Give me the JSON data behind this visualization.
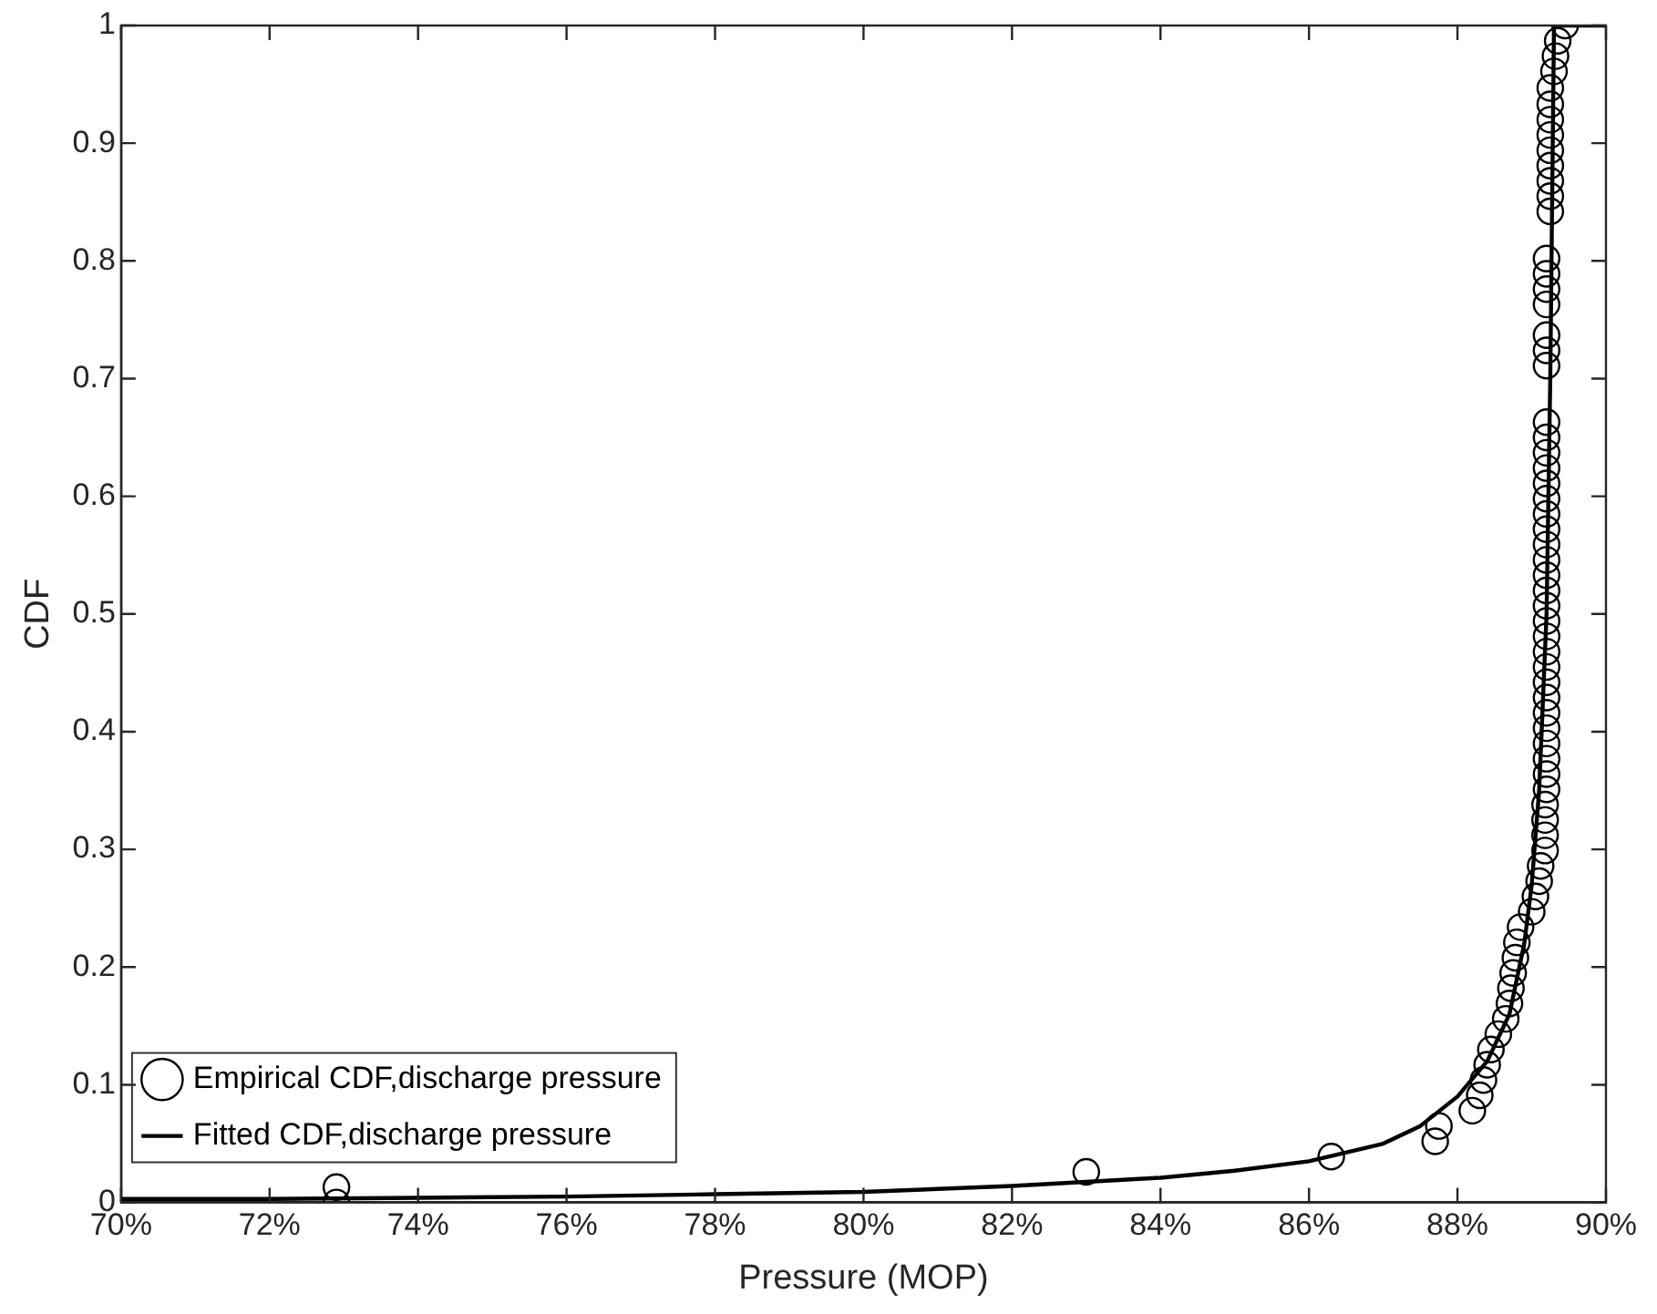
{
  "chart_data": {
    "type": "scatter",
    "xlabel": "Pressure (MOP)",
    "ylabel": "CDF",
    "xlim": [
      70,
      90
    ],
    "ylim": [
      0,
      1
    ],
    "xticks": [
      {
        "value": 70,
        "label": "70%"
      },
      {
        "value": 72,
        "label": "72%"
      },
      {
        "value": 74,
        "label": "74%"
      },
      {
        "value": 76,
        "label": "76%"
      },
      {
        "value": 78,
        "label": "78%"
      },
      {
        "value": 80,
        "label": "80%"
      },
      {
        "value": 82,
        "label": "82%"
      },
      {
        "value": 84,
        "label": "84%"
      },
      {
        "value": 86,
        "label": "86%"
      },
      {
        "value": 88,
        "label": "88%"
      },
      {
        "value": 90,
        "label": "90%"
      }
    ],
    "yticks": [
      0,
      0.1,
      0.2,
      0.3,
      0.4,
      0.5,
      0.6,
      0.7,
      0.8,
      0.9,
      1
    ],
    "grid": false,
    "legend": "bottom left",
    "series": [
      {
        "name": "Empirical CDF,discharge pressure",
        "marker": "circle",
        "color": "#000000",
        "x": [
          72.9,
          72.9,
          83.0,
          86.3,
          87.7,
          87.75,
          88.2,
          88.3,
          88.35,
          88.4,
          88.45,
          88.55,
          88.65,
          88.7,
          88.72,
          88.75,
          88.78,
          88.8,
          88.85,
          89.0,
          89.05,
          89.1,
          89.12,
          89.18,
          89.18,
          89.18,
          89.18,
          89.2,
          89.2,
          89.2,
          89.2,
          89.2,
          89.2,
          89.2,
          89.2,
          89.2,
          89.2,
          89.2,
          89.2,
          89.2,
          89.2,
          89.2,
          89.2,
          89.2,
          89.2,
          89.2,
          89.2,
          89.2,
          89.2,
          89.2,
          89.2,
          89.2,
          89.2,
          89.2,
          89.2,
          89.2,
          89.2,
          89.2,
          89.2,
          89.25,
          89.25,
          89.25,
          89.25,
          89.25,
          89.25,
          89.25,
          89.25,
          89.25,
          89.3,
          89.32,
          89.35,
          89.45
        ],
        "values": [
          0,
          0.013,
          0.026,
          0.039,
          0.052,
          0.065,
          0.078,
          0.091,
          0.104,
          0.117,
          0.13,
          0.143,
          0.156,
          0.169,
          0.182,
          0.195,
          0.208,
          0.221,
          0.234,
          0.247,
          0.26,
          0.273,
          0.286,
          0.299,
          0.312,
          0.325,
          0.338,
          0.351,
          0.364,
          0.377,
          0.39,
          0.403,
          0.416,
          0.429,
          0.442,
          0.455,
          0.468,
          0.481,
          0.494,
          0.507,
          0.52,
          0.533,
          0.546,
          0.559,
          0.572,
          0.585,
          0.598,
          0.611,
          0.624,
          0.637,
          0.65,
          0.663,
          0.711,
          0.724,
          0.737,
          0.763,
          0.776,
          0.789,
          0.802,
          0.842,
          0.855,
          0.868,
          0.881,
          0.894,
          0.907,
          0.92,
          0.933,
          0.947,
          0.961,
          0.974,
          0.987,
          1.0
        ]
      },
      {
        "name": "Fitted CDF,discharge pressure",
        "type": "line",
        "marker": "none",
        "line_style": "solid",
        "color": "#000000",
        "x": [
          70,
          72,
          74,
          76,
          78,
          80,
          82,
          84,
          85,
          86,
          87,
          87.5,
          88,
          88.4,
          88.7,
          88.9,
          89.0,
          89.1,
          89.2,
          89.25,
          89.3,
          90
        ],
        "values": [
          0.003,
          0.003,
          0.004,
          0.005,
          0.007,
          0.009,
          0.014,
          0.021,
          0.027,
          0.035,
          0.05,
          0.065,
          0.09,
          0.12,
          0.16,
          0.22,
          0.27,
          0.35,
          0.5,
          0.7,
          1.0,
          1.0
        ]
      }
    ]
  }
}
